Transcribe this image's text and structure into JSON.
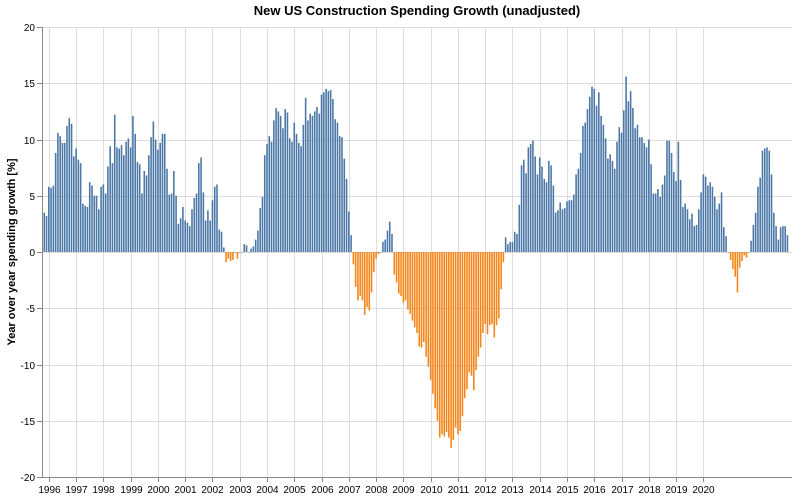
{
  "chart_data": {
    "type": "bar",
    "title": "New US Construction Spending Growth (unadjusted)",
    "xlabel": "",
    "ylabel": "Year over year spending growth [%]",
    "ylim": [
      -20,
      20
    ],
    "y_ticks": [
      -20,
      -15,
      -10,
      -5,
      0,
      5,
      10,
      15,
      20
    ],
    "x_start": "1995-11",
    "x_ticks": [
      "1996",
      "1997",
      "1998",
      "1999",
      "2000",
      "2001",
      "2002",
      "2003",
      "2004",
      "2005",
      "2006",
      "2007",
      "2008",
      "2009",
      "2010",
      "2011",
      "2012",
      "2013",
      "2014",
      "2015",
      "2016",
      "2017",
      "2018",
      "2019",
      "2020"
    ],
    "grid": true,
    "colors": {
      "positive": "#4c78a8",
      "negative": "#f58518"
    },
    "series": [
      {
        "name": "Year over year spending growth",
        "values": [
          3.5,
          3.2,
          5.8,
          5.7,
          5.9,
          8.8,
          10.6,
          10.3,
          9.7,
          9.7,
          11.2,
          11.9,
          11.4,
          8.5,
          9.2,
          8.2,
          7.9,
          4.3,
          4.1,
          4.0,
          6.2,
          5.9,
          5.0,
          5.0,
          3.8,
          5.8,
          6.0,
          5.2,
          7.6,
          9.4,
          7.9,
          12.2,
          9.3,
          9.2,
          9.5,
          8.6,
          9.8,
          10.1,
          9.3,
          12.1,
          10.5,
          8.0,
          7.8,
          5.2,
          7.2,
          6.8,
          8.6,
          10.2,
          11.6,
          10.0,
          9.1,
          9.7,
          10.5,
          10.5,
          7.4,
          5.1,
          5.2,
          7.2,
          5.0,
          2.5,
          3.0,
          4.0,
          2.8,
          2.6,
          2.3,
          3.8,
          4.8,
          5.2,
          7.9,
          8.4,
          5.3,
          2.8,
          3.7,
          2.8,
          4.6,
          5.8,
          6.0,
          2.0,
          1.8,
          0.4,
          -0.9,
          -0.6,
          -0.8,
          -0.7,
          0.0,
          -0.6,
          0.0,
          0.0,
          0.7,
          0.6,
          0.0,
          0.3,
          0.5,
          1.1,
          1.9,
          3.9,
          4.9,
          8.6,
          9.6,
          10.3,
          9.8,
          11.7,
          12.8,
          12.5,
          12.1,
          11.0,
          12.7,
          12.4,
          10.1,
          9.8,
          11.5,
          10.5,
          9.7,
          9.4,
          11.3,
          13.7,
          11.7,
          12.3,
          12.1,
          12.5,
          12.9,
          12.3,
          14.0,
          14.2,
          14.5,
          14.3,
          14.4,
          13.6,
          11.8,
          11.5,
          10.3,
          10.2,
          8.3,
          6.5,
          3.6,
          1.5,
          -1.1,
          -3.1,
          -4.3,
          -3.9,
          -4.3,
          -5.6,
          -4.9,
          -5.2,
          -3.6,
          -1.8,
          -0.6,
          -0.2,
          0.0,
          0.9,
          1.1,
          1.9,
          2.7,
          1.6,
          -2.0,
          -2.7,
          -3.7,
          -3.9,
          -4.5,
          -4.3,
          -5.1,
          -5.5,
          -6.1,
          -6.7,
          -7.2,
          -8.4,
          -8.5,
          -8.0,
          -9.3,
          -10.2,
          -11.4,
          -12.6,
          -13.9,
          -15.0,
          -16.5,
          -16.2,
          -16.4,
          -16.0,
          -16.5,
          -17.4,
          -16.7,
          -15.6,
          -16.2,
          -15.9,
          -14.6,
          -13.0,
          -12.2,
          -10.7,
          -11.0,
          -12.3,
          -10.5,
          -9.3,
          -8.5,
          -7.2,
          -6.4,
          -7.3,
          -6.5,
          -6.4,
          -7.6,
          -6.5,
          -5.9,
          -3.3,
          -0.9,
          1.3,
          0.7,
          0.9,
          0.9,
          1.8,
          1.6,
          4.2,
          7.7,
          8.2,
          7.0,
          9.3,
          9.6,
          9.9,
          8.5,
          6.9,
          8.4,
          7.6,
          6.5,
          6.2,
          8.1,
          7.7,
          5.9,
          3.5,
          3.7,
          4.4,
          3.8,
          3.9,
          4.5,
          4.6,
          4.6,
          5.1,
          6.9,
          7.4,
          8.8,
          11.2,
          11.5,
          12.7,
          13.8,
          14.7,
          14.5,
          13.0,
          14.2,
          12.1,
          11.3,
          10.1,
          8.3,
          8.7,
          8.1,
          7.4,
          9.8,
          11.1,
          10.6,
          12.6,
          15.6,
          13.4,
          14.3,
          12.8,
          11.0,
          11.3,
          10.2,
          10.2,
          9.7,
          9.3,
          10.0,
          7.8,
          5.2,
          5.2,
          5.6,
          4.9,
          6.0,
          6.8,
          9.9,
          9.9,
          8.8,
          7.1,
          6.3,
          9.8,
          6.4,
          4.0,
          4.3,
          3.8,
          2.9,
          3.4,
          2.3,
          2.4,
          3.8,
          5.3,
          6.9,
          6.7,
          5.9,
          6.2,
          5.8,
          4.9,
          3.8,
          4.3,
          5.3,
          2.2,
          1.4,
          0.0,
          -0.7,
          -1.5,
          -2.2,
          -3.6,
          -1.4,
          -0.8,
          -0.3,
          -0.5,
          0.0,
          1.0,
          2.4,
          3.5,
          5.8,
          6.6,
          9.0,
          9.2,
          9.3,
          9.0,
          6.9,
          3.5,
          2.3,
          1.1,
          2.2,
          2.3,
          2.3,
          1.5
        ]
      }
    ]
  }
}
